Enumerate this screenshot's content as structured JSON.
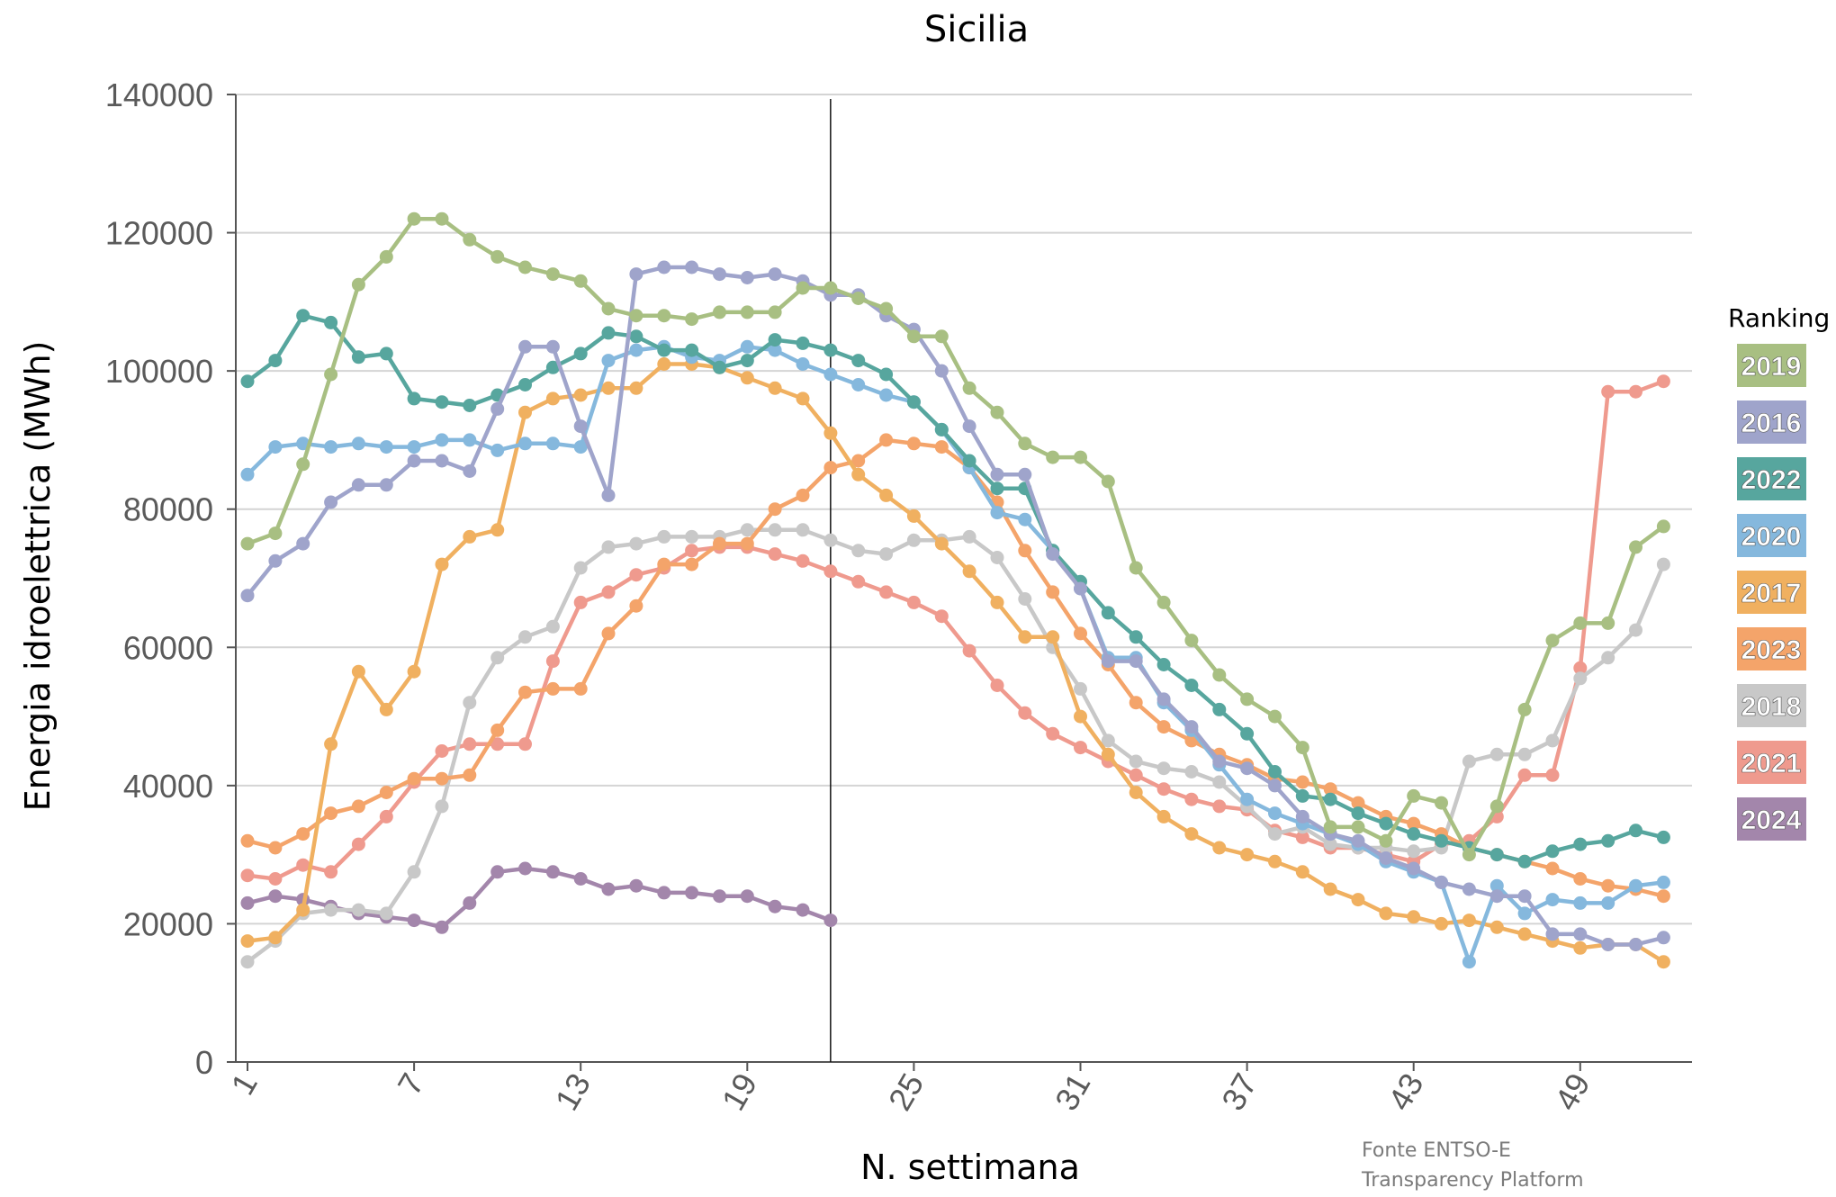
{
  "chart_data": {
    "type": "line",
    "title": "Sicilia",
    "xlabel": "N. settimana",
    "ylabel": "Energia idroelettrica (MWh)",
    "ylim": [
      0,
      140000
    ],
    "xlim": [
      1,
      52
    ],
    "yticks": [
      "0",
      "20000",
      "40000",
      "60000",
      "80000",
      "100000",
      "120000",
      "140000"
    ],
    "ytick_values": [
      0,
      20000,
      40000,
      60000,
      80000,
      100000,
      120000,
      140000
    ],
    "xticks": [
      "1",
      "7",
      "13",
      "19",
      "25",
      "31",
      "37",
      "43",
      "49"
    ],
    "xtick_values": [
      1,
      7,
      13,
      19,
      25,
      31,
      37,
      43,
      49
    ],
    "grid": true,
    "current_week_marker": 22,
    "legend_title": "Ranking",
    "legend_position": "right",
    "source": [
      "Fonte ENTSO-E",
      "Transparency Platform"
    ],
    "series": [
      {
        "name": "2019",
        "color": "#A8BF82",
        "values": [
          75000,
          76500,
          86500,
          99500,
          112500,
          116500,
          122000,
          122000,
          119000,
          116500,
          115000,
          114000,
          113000,
          109000,
          108000,
          108000,
          107500,
          108500,
          108500,
          108500,
          112000,
          112000,
          110500,
          109000,
          105000,
          105000,
          97500,
          94000,
          89500,
          87500,
          87500,
          84000,
          71500,
          66500,
          61000,
          56000,
          52500,
          50000,
          45500,
          34000,
          34000,
          32000,
          38500,
          37500,
          30000,
          37000,
          51000,
          61000,
          63500,
          63500,
          74500,
          77500
        ]
      },
      {
        "name": "2016",
        "color": "#9FA4CB",
        "values": [
          67500,
          72500,
          75000,
          81000,
          83500,
          83500,
          87000,
          87000,
          85500,
          94500,
          103500,
          103500,
          92000,
          82000,
          114000,
          115000,
          115000,
          114000,
          113500,
          114000,
          113000,
          111000,
          111000,
          108000,
          106000,
          100000,
          92000,
          85000,
          85000,
          73500,
          68500,
          58000,
          58000,
          52500,
          48500,
          43500,
          42500,
          40000,
          35500,
          33000,
          32000,
          29500,
          28000,
          26000,
          25000,
          24000,
          24000,
          18500,
          18500,
          17000,
          17000,
          18000
        ]
      },
      {
        "name": "2022",
        "color": "#57A69E",
        "values": [
          98500,
          101500,
          108000,
          107000,
          102000,
          102500,
          96000,
          95500,
          95000,
          96500,
          98000,
          100500,
          102500,
          105500,
          105000,
          103000,
          103000,
          100500,
          101500,
          104500,
          104000,
          103000,
          101500,
          99500,
          95500,
          91500,
          87000,
          83000,
          83000,
          74000,
          69500,
          65000,
          61500,
          57500,
          54500,
          51000,
          47500,
          42000,
          38500,
          38000,
          36000,
          34500,
          33000,
          32000,
          31000,
          30000,
          29000,
          30500,
          31500,
          32000,
          33500,
          32500
        ]
      },
      {
        "name": "2020",
        "color": "#85B8DD",
        "values": [
          85000,
          89000,
          89500,
          89000,
          89500,
          89000,
          89000,
          90000,
          90000,
          88500,
          89500,
          89500,
          89000,
          101500,
          103000,
          103500,
          102000,
          101500,
          103500,
          103000,
          101000,
          99500,
          98000,
          96500,
          95500,
          91500,
          86000,
          79500,
          78500,
          74000,
          68500,
          58500,
          58500,
          52000,
          48000,
          43000,
          38000,
          36000,
          34500,
          33000,
          31500,
          29000,
          27500,
          26000,
          14500,
          25500,
          21500,
          23500,
          23000,
          23000,
          25500,
          26000
        ]
      },
      {
        "name": "2017",
        "color": "#F0B060",
        "values": [
          17500,
          18000,
          22000,
          46000,
          56500,
          51000,
          56500,
          72000,
          76000,
          77000,
          94000,
          96000,
          96500,
          97500,
          97500,
          101000,
          101000,
          100500,
          99000,
          97500,
          96000,
          91000,
          85000,
          82000,
          79000,
          75000,
          71000,
          66500,
          61500,
          61500,
          50000,
          44500,
          39000,
          35500,
          33000,
          31000,
          30000,
          29000,
          27500,
          25000,
          23500,
          21500,
          21000,
          20000,
          20500,
          19500,
          18500,
          17500,
          16500,
          17000,
          17000,
          14500
        ]
      },
      {
        "name": "2023",
        "color": "#F4A46A",
        "values": [
          32000,
          31000,
          33000,
          36000,
          37000,
          39000,
          41000,
          41000,
          41500,
          48000,
          53500,
          54000,
          54000,
          62000,
          66000,
          72000,
          72000,
          75000,
          75000,
          80000,
          82000,
          86000,
          87000,
          90000,
          89500,
          89000,
          86000,
          81000,
          74000,
          68000,
          62000,
          57500,
          52000,
          48500,
          46500,
          44500,
          43000,
          41000,
          40500,
          39500,
          37500,
          35500,
          34500,
          33000,
          31000,
          30000,
          29000,
          28000,
          26500,
          25500,
          25000,
          24000
        ]
      },
      {
        "name": "2018",
        "color": "#C8C8C8",
        "values": [
          14500,
          17500,
          21500,
          22000,
          22000,
          21500,
          27500,
          37000,
          52000,
          58500,
          61500,
          63000,
          71500,
          74500,
          75000,
          76000,
          76000,
          76000,
          77000,
          77000,
          77000,
          75500,
          74000,
          73500,
          75500,
          75500,
          76000,
          73000,
          67000,
          60000,
          54000,
          46500,
          43500,
          42500,
          42000,
          40500,
          37000,
          33000,
          34000,
          31500,
          31000,
          31000,
          30500,
          31000,
          43500,
          44500,
          44500,
          46500,
          55500,
          58500,
          62500,
          72000
        ]
      },
      {
        "name": "2021",
        "color": "#EF9A8E",
        "values": [
          27000,
          26500,
          28500,
          27500,
          31500,
          35500,
          40500,
          45000,
          46000,
          46000,
          46000,
          58000,
          66500,
          68000,
          70500,
          71500,
          74000,
          74500,
          74500,
          73500,
          72500,
          71000,
          69500,
          68000,
          66500,
          64500,
          59500,
          54500,
          50500,
          47500,
          45500,
          43500,
          41500,
          39500,
          38000,
          37000,
          36500,
          33500,
          32500,
          31000,
          31000,
          30000,
          29000,
          31500,
          32000,
          35500,
          41500,
          41500,
          57000,
          97000,
          97000,
          98500
        ]
      },
      {
        "name": "2024",
        "color": "#A386AB",
        "values": [
          23000,
          24000,
          23500,
          22500,
          21500,
          21000,
          20500,
          19500,
          23000,
          27500,
          28000,
          27500,
          26500,
          25000,
          25500,
          24500,
          24500,
          24000,
          24000,
          22500,
          22000,
          20500
        ]
      }
    ]
  }
}
